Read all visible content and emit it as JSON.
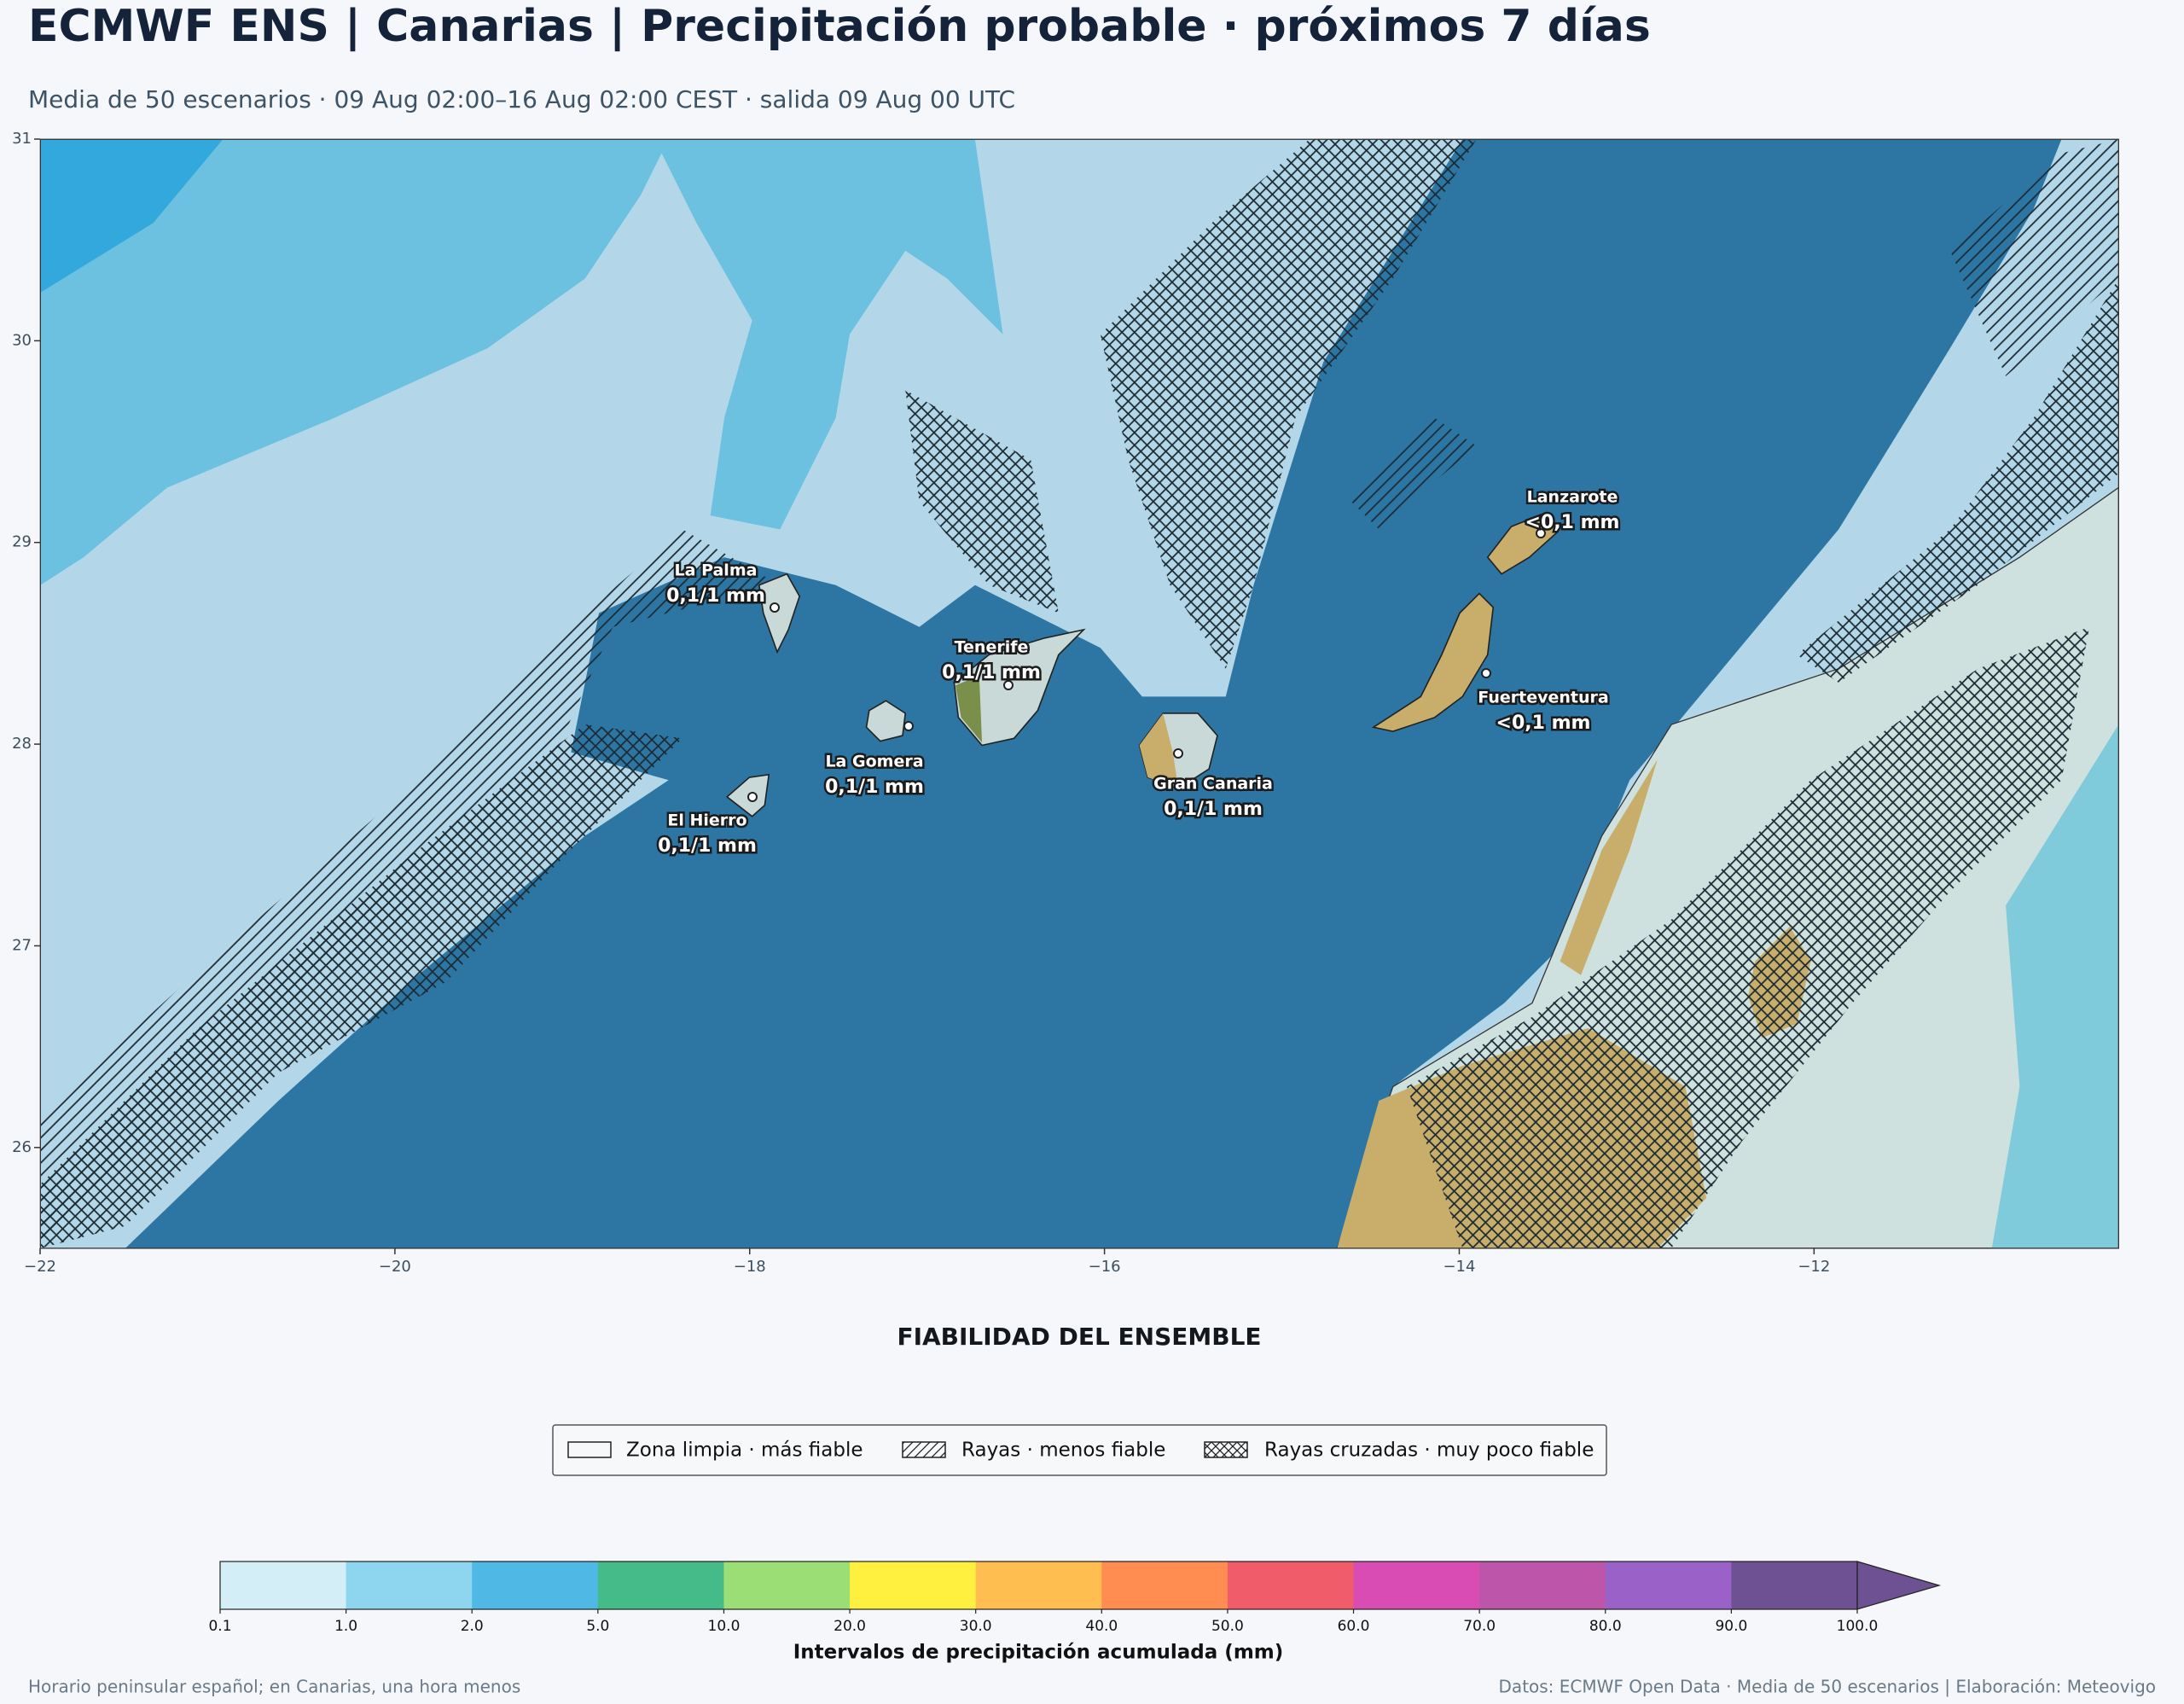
{
  "header": {
    "title": "ECMWF ENS | Canarias | Precipitación probable · próximos 7 días",
    "subtitle": "Media de 50 escenarios · 09 Aug 02:00–16 Aug 02:00 CEST · salida 09 Aug 00 UTC"
  },
  "map": {
    "xlim": [
      -22,
      -10.28
    ],
    "ylim": [
      25.5,
      31
    ],
    "xticks": [
      {
        "value": -22,
        "label": "−22"
      },
      {
        "value": -20,
        "label": "−20"
      },
      {
        "value": -18,
        "label": "−18"
      },
      {
        "value": -16,
        "label": "−16"
      },
      {
        "value": -14,
        "label": "−14"
      },
      {
        "value": -12,
        "label": "−12"
      }
    ],
    "yticks": [
      26,
      27,
      28,
      29,
      30,
      31
    ],
    "islands": [
      {
        "name": "La Palma",
        "value": "0,1/1 mm"
      },
      {
        "name": "Tenerife",
        "value": "0,1/1 mm"
      },
      {
        "name": "La Gomera",
        "value": "0,1/1 mm"
      },
      {
        "name": "El Hierro",
        "value": "0,1/1 mm"
      },
      {
        "name": "Gran Canaria",
        "value": "0,1/1 mm"
      },
      {
        "name": "Lanzarote",
        "value": "<0,1 mm"
      },
      {
        "name": "Fuerteventura",
        "value": "<0,1 mm"
      }
    ]
  },
  "legend": {
    "title": "FIABILIDAD DEL ENSEMBLE",
    "entries": [
      "Zona limpia · más fiable",
      "Rayas · menos fiable",
      "Rayas cruzadas · muy poco fiable"
    ]
  },
  "colorbar": {
    "bounds": [
      0.1,
      {
        "value": 1,
        "label": "1.0"
      },
      {
        "value": 2,
        "label": "2.0"
      },
      {
        "value": 5,
        "label": "5.0"
      },
      {
        "value": 10,
        "label": "10.0"
      },
      {
        "value": 20,
        "label": "20.0"
      },
      {
        "value": 30,
        "label": "30.0"
      },
      {
        "value": 40,
        "label": "40.0"
      },
      {
        "value": 50,
        "label": "50.0"
      },
      {
        "value": 60,
        "label": "60.0"
      },
      {
        "value": 70,
        "label": "70.0"
      },
      {
        "value": 80,
        "label": "80.0"
      },
      {
        "value": 90,
        "label": "90.0"
      },
      {
        "value": 100,
        "label": "100.0"
      }
    ],
    "colors": [
      "#d4eef7",
      "#8ed5f0",
      "#4fb8e5",
      "#44bb88",
      "#9bde75",
      "#fff03f",
      "#ffbe4f",
      "#ff8c50",
      "#f05c6a",
      "#d84cb4",
      "#bd55aa",
      "#9a62c9",
      "#6e5193"
    ],
    "label": "Intervalos de precipitación acumulada (mm)"
  },
  "footer": {
    "left": "Horario peninsular español; en Canarias, una hora menos",
    "right": "Datos: ECMWF Open Data · Media de 50 escenarios | Elaboración: Meteovigo"
  }
}
